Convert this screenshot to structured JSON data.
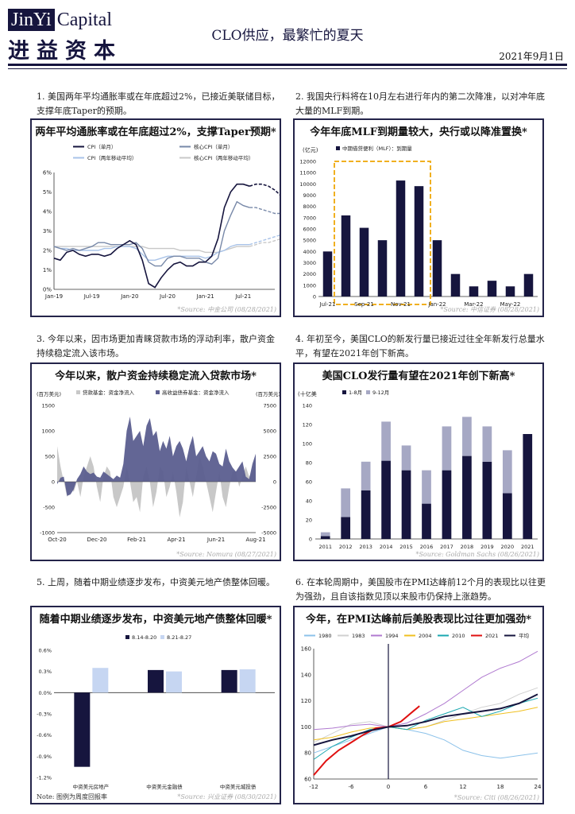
{
  "header": {
    "logo_jinyi": "JinYi",
    "logo_capital": "Capital",
    "logo_cn": "进益资本",
    "title": "CLO供应，最繁忙的夏天",
    "date": "2021年9月1日"
  },
  "sections": [
    {
      "text": "1. 美国两年平均通胀率或在年底超过2%，已接近美联储目标，支撑年底Taper的预期。",
      "source": "*Source: 中金公司 (08/28/2021)",
      "chart_data": {
        "type": "line",
        "title": "两年平均通胀率或在年底超过2%，支撑Taper预期*",
        "legend": [
          "CPI（单月）",
          "核心CPI（单月）",
          "CPI（两年移动平均）",
          "核心CPI（两年移动平均）"
        ],
        "x_ticks": [
          "Jan-19",
          "Jul-19",
          "Jan-20",
          "Jul-20",
          "Jan-21",
          "Jul-21"
        ],
        "y_ticks": [
          "0%",
          "1%",
          "2%",
          "3%",
          "4%",
          "5%",
          "6%"
        ],
        "ylim": [
          0,
          6
        ],
        "x_months": [
          0,
          1,
          2,
          3,
          4,
          5,
          6,
          7,
          8,
          9,
          10,
          11,
          12,
          13,
          14,
          15,
          16,
          17,
          18,
          19,
          20,
          21,
          22,
          23,
          24,
          25,
          26,
          27,
          28,
          29,
          30,
          31,
          32,
          33,
          34,
          35
        ],
        "series": [
          {
            "name": "CPI（单月）",
            "color": "#16153e",
            "values": [
              1.6,
              1.5,
              1.9,
              2.0,
              1.8,
              1.7,
              1.8,
              1.8,
              1.7,
              1.8,
              2.1,
              2.3,
              2.5,
              2.3,
              1.5,
              0.3,
              0.1,
              0.6,
              1.0,
              1.3,
              1.4,
              1.2,
              1.2,
              1.4,
              1.4,
              1.7,
              2.6,
              4.2,
              5.0,
              5.4,
              5.4,
              5.3
            ],
            "forecast": [
              5.3,
              5.4,
              5.4,
              5.3,
              5.1,
              4.8
            ]
          },
          {
            "name": "核心CPI（单月）",
            "color": "#7788a8",
            "values": [
              2.2,
              2.1,
              2.0,
              2.1,
              2.0,
              2.1,
              2.2,
              2.4,
              2.4,
              2.3,
              2.3,
              2.3,
              2.3,
              2.4,
              2.1,
              1.4,
              1.2,
              1.2,
              1.6,
              1.7,
              1.7,
              1.6,
              1.6,
              1.6,
              1.4,
              1.3,
              1.6,
              3.0,
              3.8,
              4.5,
              4.3,
              4.2
            ],
            "forecast": [
              4.2,
              4.2,
              4.1,
              4.0,
              3.9,
              3.9
            ]
          },
          {
            "name": "CPI（两年移动平均）",
            "color": "#a9c3e8",
            "values": [
              2.2,
              2.1,
              2.1,
              2.0,
              2.0,
              2.0,
              2.0,
              2.0,
              2.1,
              2.1,
              2.2,
              2.2,
              2.2,
              2.1,
              1.8,
              1.5,
              1.5,
              1.6,
              1.7,
              1.7,
              1.7,
              1.7,
              1.7,
              1.7,
              1.6,
              1.7,
              1.9,
              2.0,
              2.2,
              2.3,
              2.3,
              2.3
            ],
            "forecast": [
              2.3,
              2.4,
              2.5,
              2.6,
              2.7,
              2.8
            ]
          },
          {
            "name": "核心CPI（两年移动平均）",
            "color": "#c8c8c8",
            "values": [
              2.2,
              2.2,
              2.2,
              2.2,
              2.2,
              2.2,
              2.2,
              2.2,
              2.2,
              2.2,
              2.2,
              2.2,
              2.2,
              2.2,
              2.2,
              2.1,
              2.1,
              2.1,
              2.1,
              2.1,
              2.0,
              2.0,
              2.0,
              2.0,
              1.9,
              1.9,
              1.9,
              2.0,
              2.1,
              2.2,
              2.2,
              2.2
            ],
            "forecast": [
              2.2,
              2.3,
              2.4,
              2.4,
              2.5,
              2.6
            ]
          }
        ]
      }
    },
    {
      "text": "2. 我国央行料将在10月左右进行年内的第二次降准，以对冲年底大量的MLF到期。",
      "source": "*Source: 中信证券 (08/28/2021)",
      "chart_data": {
        "type": "bar",
        "title": "今年年底MLF到期量较大，央行或以降准置换*",
        "unit": "(亿元)",
        "legend": [
          "中期借贷便利（MLF）：到期量"
        ],
        "categories": [
          "Jul-21",
          "Aug-21",
          "Sep-21",
          "Oct-21",
          "Nov-21",
          "Dec-21",
          "Jan-22",
          "Feb-22",
          "Mar-22",
          "Apr-22",
          "May-22",
          "Jun-22"
        ],
        "x_ticks": [
          "Jul-21",
          "Sep-21",
          "Nov-21",
          "Jan-22",
          "Mar-22",
          "May-22"
        ],
        "values": [
          4000,
          7200,
          6100,
          5000,
          10300,
          9800,
          5000,
          2000,
          900,
          1400,
          900,
          2000
        ],
        "highlight_range": [
          1,
          5
        ],
        "y_ticks": [
          "0",
          "1000",
          "2000",
          "3000",
          "4000",
          "5000",
          "6000",
          "7000",
          "8000",
          "9000",
          "10000",
          "11000",
          "12000"
        ],
        "ylim": [
          0,
          12000
        ]
      }
    },
    {
      "text": "3. 今年以来，因市场更加青睐贷款市场的浮动利率，散户资金持续稳定流入该市场。",
      "source": "*Source: Nomura (08/27/2021)",
      "chart_data": {
        "type": "area",
        "title": "今年以来，散户资金持续稳定流入贷款市场*",
        "left_unit": "(百万美元)",
        "right_unit": "(百万美元)",
        "legend": [
          "贷款基金：资金净流入",
          "高收益债券基金：资金净流入"
        ],
        "x_ticks": [
          "Oct-20",
          "Dec-20",
          "Feb-21",
          "Apr-21",
          "Jun-21",
          "Aug-21"
        ],
        "y_ticks_left": [
          "-1000",
          "-500",
          "0",
          "500",
          "1000",
          "1500"
        ],
        "y_ticks_right": [
          "-5000",
          "-2500",
          "0",
          "2500",
          "5000",
          "7500"
        ],
        "ylim_left": [
          -1000,
          1500
        ],
        "ylim_right": [
          -5000,
          7500
        ],
        "series": [
          {
            "name": "贷款基金：资金净流入",
            "color": "#5b5e8f",
            "axis": "left",
            "values": [
              -50,
              80,
              100,
              -280,
              -250,
              -150,
              50,
              150,
              300,
              200,
              150,
              180,
              100,
              80,
              200,
              150,
              100,
              50,
              120,
              80,
              350,
              1000,
              1280,
              800,
              900,
              1000,
              700,
              1100,
              1250,
              900,
              1000,
              600,
              800,
              650,
              900,
              500,
              700,
              800,
              650,
              400,
              700,
              900,
              500,
              600,
              700,
              500,
              400,
              600,
              550,
              350,
              300,
              650,
              400,
              280,
              200,
              300,
              400,
              100,
              50,
              350,
              550
            ]
          },
          {
            "name": "高收益债券基金：资金净流入",
            "color": "#c8c8c8",
            "axis": "right",
            "values": [
              3500,
              1500,
              0,
              -1500,
              -500,
              -1000,
              0,
              -1500,
              500,
              1500,
              2500,
              1500,
              -500,
              -2000,
              500,
              1500,
              1000,
              -1500,
              -2500,
              -1500,
              -500,
              1500,
              0,
              -2000,
              -1500,
              -3000,
              500,
              1500,
              0,
              -2500,
              -1000,
              1500,
              1000,
              -1500,
              -500,
              1000,
              -1000,
              -3500,
              -2000,
              1500,
              0,
              -1500,
              500,
              2500,
              1500,
              0,
              -1500,
              -3000,
              -1000,
              1000,
              -1500,
              -2500,
              -500,
              1000,
              1000,
              -500,
              500,
              1500,
              500,
              1000,
              2500
            ]
          }
        ]
      }
    },
    {
      "text": "4. 年初至今，美国CLO的新发行量已接近过往全年新发行总量水平，有望在2021年创下新高。",
      "source": "*Source: Goldman Sachs (08/26/2021)",
      "chart_data": {
        "type": "bar",
        "title": "美国CLO发行量有望在2021年创下新高*",
        "unit": "(十亿美",
        "legend": [
          "1-8月",
          "9-12月"
        ],
        "categories": [
          "2011",
          "2012",
          "2013",
          "2014",
          "2015",
          "2016",
          "2017",
          "2018",
          "2019",
          "2020",
          "2021"
        ],
        "series": [
          {
            "name": "1-8月",
            "color": "#16153e",
            "values": [
              3,
              23,
              51,
              82,
              72,
              37,
              72,
              87,
              81,
              48,
              110
            ]
          },
          {
            "name": "9-12月",
            "color": "#a6a8c4",
            "values": [
              4,
              30,
              30,
              41,
              26,
              35,
              46,
              41,
              37,
              45,
              0
            ]
          }
        ],
        "y_ticks": [
          "0",
          "20",
          "40",
          "60",
          "80",
          "100",
          "120",
          "140"
        ],
        "ylim": [
          0,
          140
        ]
      }
    },
    {
      "text": "5. 上周，随着中期业绩逐步发布，中资美元地产债整体回暖。",
      "source": "*Source: 兴业证券 (08/30/2021)",
      "note": "Note: 图例为周度回报率",
      "chart_data": {
        "type": "bar",
        "title": "随着中期业绩逐步发布，中资美元地产债整体回暖*",
        "legend": [
          "8.14-8.20",
          "8.21-8.27"
        ],
        "categories": [
          "中资美元房地产",
          "中资美元金融债",
          "中资美元城投债"
        ],
        "series": [
          {
            "name": "8.14-8.20",
            "color": "#16153e",
            "values": [
              -1.05,
              0.32,
              0.32
            ]
          },
          {
            "name": "8.21-8.27",
            "color": "#c6d6f2",
            "values": [
              0.35,
              0.3,
              0.33
            ]
          }
        ],
        "y_ticks": [
          "-1.2%",
          "-0.9%",
          "-0.6%",
          "-0.3%",
          "0.0%",
          "0.3%",
          "0.6%"
        ],
        "ylim": [
          -1.2,
          0.6
        ]
      }
    },
    {
      "text": "6. 在本轮周期中，美国股市在PMI达峰前12个月的表现比以往更为强劲，且自该指数见顶以来股市仍保持上涨趋势。",
      "source": "*Source: Citi (08/26/2021)",
      "chart_data": {
        "type": "line",
        "title": "今年，在PMI达峰前后美股表现比过往更加强劲*",
        "x_ticks": [
          "-12",
          "-6",
          "0",
          "6",
          "12",
          "18",
          "24"
        ],
        "xlim": [
          -12,
          24
        ],
        "y_ticks": [
          "60",
          "80",
          "100",
          "120",
          "140",
          "160"
        ],
        "ylim": [
          60,
          160
        ],
        "series": [
          {
            "name": "1980",
            "color": "#8cc2ea",
            "x": [
              -12,
              -9,
              -6,
              -3,
              0,
              3,
              6,
              9,
              12,
              15,
              18,
              21,
              24
            ],
            "values": [
              80,
              85,
              90,
              95,
              100,
              98,
              95,
              90,
              82,
              78,
              76,
              78,
              80
            ]
          },
          {
            "name": "1983",
            "color": "#d0d0d0",
            "x": [
              -12,
              -9,
              -6,
              -3,
              0,
              3,
              6,
              9,
              12,
              15,
              18,
              21,
              24
            ],
            "values": [
              88,
              95,
              102,
              104,
              100,
              98,
              100,
              105,
              110,
              115,
              118,
              125,
              130
            ]
          },
          {
            "name": "1994",
            "color": "#b07ad0",
            "x": [
              -12,
              -9,
              -6,
              -3,
              0,
              3,
              6,
              9,
              12,
              15,
              18,
              21,
              24
            ],
            "values": [
              98,
              99,
              101,
              102,
              100,
              103,
              110,
              118,
              128,
              138,
              145,
              150,
              158
            ]
          },
          {
            "name": "2004",
            "color": "#f0c020",
            "x": [
              -12,
              -9,
              -6,
              -3,
              0,
              3,
              6,
              9,
              12,
              15,
              18,
              21,
              24
            ],
            "values": [
              90,
              92,
              96,
              99,
              100,
              98,
              100,
              104,
              106,
              108,
              110,
              112,
              115
            ]
          },
          {
            "name": "2010",
            "color": "#1aa8b0",
            "x": [
              -12,
              -9,
              -6,
              -3,
              0,
              3,
              6,
              9,
              12,
              15,
              18,
              21,
              24
            ],
            "values": [
              75,
              85,
              92,
              98,
              100,
              98,
              105,
              110,
              115,
              108,
              112,
              118,
              122
            ]
          },
          {
            "name": "2021",
            "color": "#e01010",
            "x": [
              -12,
              -10,
              -8,
              -6,
              -4,
              -2,
              0,
              2,
              4,
              5
            ],
            "values": [
              63,
              74,
              82,
              88,
              94,
              99,
              100,
              104,
              112,
              116
            ]
          },
          {
            "name": "平均",
            "color": "#16153e",
            "x": [
              -12,
              -9,
              -6,
              -3,
              0,
              3,
              6,
              9,
              12,
              15,
              18,
              21,
              24
            ],
            "values": [
              86,
              90,
              93,
              97,
              100,
              101,
              104,
              108,
              110,
              112,
              114,
              118,
              125
            ]
          }
        ]
      }
    }
  ]
}
